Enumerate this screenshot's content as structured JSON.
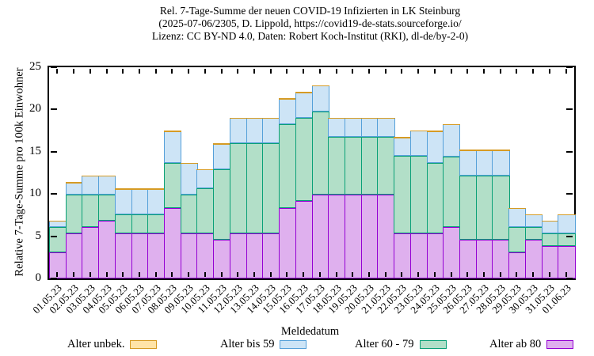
{
  "chart_data": {
    "type": "bar",
    "stacked": true,
    "title_lines": [
      "Rel. 7-Tage-Summe der neuen COVID-19 Infizierten in LK Steinburg",
      "(2025-07-06/2305, D. Lippold, https://covid19-de-stats.sourceforge.io/",
      "Lizenz: CC BY-ND 4.0, Daten: Robert Koch-Institut (RKI), dl-de/by-2-0)"
    ],
    "ylabel": "Relative 7-Tage-Summe pro 100k Einwohner",
    "xlabel": "Meldedatum",
    "ylim": [
      0,
      25
    ],
    "yticks": [
      0,
      5,
      10,
      15,
      20,
      25
    ],
    "grid": false,
    "legend_position": "bottom",
    "categories": [
      "01.05.23",
      "02.05.23",
      "03.05.23",
      "04.05.23",
      "05.05.23",
      "06.05.23",
      "07.05.23",
      "08.05.23",
      "09.05.23",
      "10.05.23",
      "11.05.23",
      "12.05.23",
      "13.05.23",
      "14.05.23",
      "15.05.23",
      "16.05.23",
      "17.05.23",
      "18.05.23",
      "19.05.23",
      "20.05.23",
      "21.05.23",
      "22.05.23",
      "23.05.23",
      "24.05.23",
      "25.05.23",
      "26.05.23",
      "27.05.23",
      "28.05.23",
      "29.05.23",
      "30.05.23",
      "31.05.23",
      "01.06.23"
    ],
    "stack_order_bottom_to_top": [
      "Alter ab 80",
      "Alter 60 - 79",
      "Alter bis 59",
      "Alter unbek."
    ],
    "series": [
      {
        "name": "Alter unbek.",
        "fill": "#ffe4a8",
        "border": "#d69b24",
        "values": [
          0,
          0,
          0,
          0,
          0,
          0,
          0,
          0,
          0,
          0,
          0,
          0,
          0,
          0,
          0,
          0,
          0,
          0,
          0,
          0,
          0,
          0,
          0,
          0,
          0,
          0,
          0,
          0,
          0,
          0,
          0,
          0
        ]
      },
      {
        "name": "Alter bis 59",
        "fill": "#cde4f6",
        "border": "#55a0d9",
        "values": [
          0.76,
          1.52,
          2.28,
          2.28,
          3.05,
          3.05,
          3.05,
          3.81,
          3.81,
          2.28,
          3.05,
          3.05,
          3.05,
          3.05,
          3.05,
          3.05,
          3.05,
          2.28,
          2.28,
          2.28,
          2.28,
          2.28,
          3.05,
          3.81,
          3.81,
          3.05,
          3.05,
          3.05,
          2.28,
          1.52,
          1.52,
          2.28
        ]
      },
      {
        "name": "Alter 60 - 79",
        "fill": "#b2dfc8",
        "border": "#0aa077",
        "values": [
          3.05,
          4.57,
          3.81,
          3.05,
          2.28,
          2.28,
          2.28,
          5.33,
          4.57,
          5.33,
          8.37,
          10.66,
          10.66,
          10.66,
          9.9,
          9.9,
          9.9,
          6.85,
          6.85,
          6.85,
          6.85,
          9.14,
          9.14,
          8.37,
          8.37,
          7.61,
          7.61,
          7.61,
          3.05,
          1.52,
          1.52,
          1.52
        ]
      },
      {
        "name": "Alter ab 80",
        "fill": "#dfb0ee",
        "border": "#9400d3",
        "values": [
          3.05,
          5.33,
          6.09,
          6.85,
          5.33,
          5.33,
          5.33,
          8.37,
          5.33,
          5.33,
          4.57,
          5.33,
          5.33,
          5.33,
          8.37,
          9.14,
          9.9,
          9.9,
          9.9,
          9.9,
          9.9,
          5.33,
          5.33,
          5.33,
          6.09,
          4.57,
          4.57,
          4.57,
          3.05,
          4.57,
          3.81,
          3.81
        ]
      }
    ]
  }
}
